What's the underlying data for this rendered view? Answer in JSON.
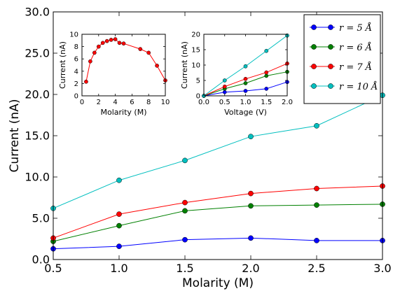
{
  "chart_data": [
    {
      "type": "line",
      "panel": "main",
      "title": "",
      "xlabel": "Molarity (M)",
      "ylabel": "Current (nA)",
      "xlim": [
        0.5,
        3.0
      ],
      "ylim": [
        0.0,
        30.0
      ],
      "x": [
        0.5,
        1.0,
        1.5,
        2.0,
        2.5,
        3.0
      ],
      "xticks": [
        "0.5",
        "1.0",
        "1.5",
        "2.0",
        "2.5",
        "3.0"
      ],
      "yticks": [
        "0.0",
        "5.0",
        "10.0",
        "15.0",
        "20.0",
        "25.0",
        "30.0"
      ],
      "grid": false,
      "legend_position": "top-right",
      "series": [
        {
          "name": "r = 5 Å",
          "color": "#0000ff",
          "values": [
            1.3,
            1.6,
            2.4,
            2.6,
            2.3,
            2.3
          ]
        },
        {
          "name": "r = 6 Å",
          "color": "#008000",
          "values": [
            2.2,
            4.1,
            5.9,
            6.5,
            6.6,
            6.7
          ]
        },
        {
          "name": "r = 7 Å",
          "color": "#ff0000",
          "values": [
            2.6,
            5.5,
            6.9,
            8.0,
            8.6,
            8.9
          ]
        },
        {
          "name": "r = 10 Å",
          "color": "#00bfbf",
          "values": [
            6.2,
            9.6,
            12.0,
            14.9,
            16.2,
            19.9
          ]
        }
      ]
    },
    {
      "type": "line",
      "panel": "inset-left",
      "title": "",
      "xlabel": "Molarity (M)",
      "ylabel": "Current (nA)",
      "xlim": [
        0,
        10
      ],
      "ylim": [
        0,
        10
      ],
      "xticks": [
        "0",
        "2",
        "4",
        "6",
        "8",
        "10"
      ],
      "yticks": [
        "0",
        "2",
        "4",
        "6",
        "8",
        "10"
      ],
      "series": [
        {
          "color": "#ff0000",
          "x": [
            0.5,
            1.0,
            1.5,
            2.0,
            2.5,
            3.0,
            3.5,
            4.0,
            4.5,
            5.0,
            7.0,
            8.0,
            9.0,
            10.0
          ],
          "values": [
            2.3,
            5.6,
            7.0,
            8.0,
            8.6,
            8.9,
            9.1,
            9.2,
            8.6,
            8.5,
            7.6,
            7.0,
            4.9,
            2.5
          ]
        }
      ]
    },
    {
      "type": "line",
      "panel": "inset-right",
      "title": "",
      "xlabel": "Voltage (V)",
      "ylabel": "Current (nA)",
      "xlim": [
        0.0,
        2.0
      ],
      "ylim": [
        0,
        20
      ],
      "xticks": [
        "0.0",
        "0.5",
        "1.0",
        "1.5",
        "2.0"
      ],
      "yticks": [
        "0",
        "5",
        "10",
        "15",
        "20"
      ],
      "x": [
        0.0,
        0.5,
        1.0,
        1.5,
        2.0
      ],
      "series": [
        {
          "color": "#0000ff",
          "values": [
            0,
            1.2,
            1.6,
            2.3,
            4.5
          ]
        },
        {
          "color": "#008000",
          "values": [
            0,
            2.3,
            4.1,
            6.5,
            7.8
          ]
        },
        {
          "color": "#ff0000",
          "values": [
            0,
            3.0,
            5.5,
            7.6,
            10.5
          ]
        },
        {
          "color": "#00bfbf",
          "values": [
            0,
            5.0,
            9.6,
            14.6,
            19.6
          ]
        }
      ]
    }
  ]
}
